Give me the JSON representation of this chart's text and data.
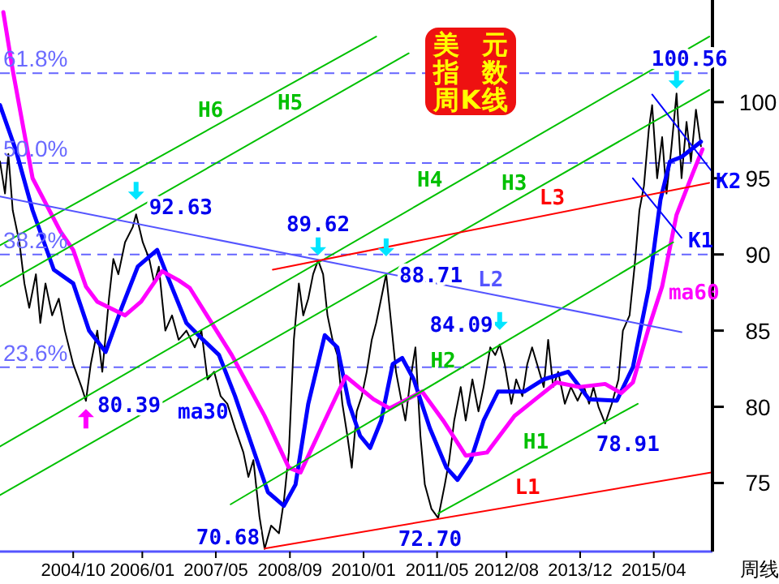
{
  "chart_data": {
    "type": "line",
    "title": "美元指数周K线",
    "xlim": [
      "2003-06-06",
      "2016-04-22"
    ],
    "ylim": [
      70.5,
      106.7
    ],
    "xticks": [
      {
        "value": "2004-10",
        "label": "2004/10"
      },
      {
        "value": "2006-01",
        "label": "2006/01"
      },
      {
        "value": "2007-05",
        "label": "2007/05"
      },
      {
        "value": "2008-09",
        "label": "2008/09"
      },
      {
        "value": "2010-01",
        "label": "2010/01"
      },
      {
        "value": "2011-05",
        "label": "2011/05"
      },
      {
        "value": "2012-08",
        "label": "2012/08"
      },
      {
        "value": "2013-12",
        "label": "2013/12"
      },
      {
        "value": "2015-04",
        "label": "2015/04"
      }
    ],
    "yticks": [
      75,
      80,
      85,
      90,
      95,
      100
    ],
    "ref_lines": [
      {
        "axis": "y",
        "value": 101.9,
        "color": "#6666ff",
        "line_style": "dashed"
      },
      {
        "axis": "y",
        "value": 96.0,
        "color": "#6666ff",
        "line_style": "dashed"
      },
      {
        "axis": "y",
        "value": 90.0,
        "color": "#6666ff",
        "line_style": "dashed"
      },
      {
        "axis": "y",
        "value": 82.6,
        "color": "#6666ff",
        "line_style": "dashed"
      }
    ],
    "annotations": [
      {
        "text": "92.63",
        "x": "2005-11-21",
        "y": 92.63
      },
      {
        "text": "80.39",
        "x": "2004-12-24",
        "y": 80.39
      },
      {
        "text": "89.62",
        "x": "2009-03-07",
        "y": 89.62
      },
      {
        "text": "88.71",
        "x": "2010-05-30",
        "y": 88.71
      },
      {
        "text": "70.68",
        "x": "2008-03-18",
        "y": 70.68
      },
      {
        "text": "84.09",
        "x": "2012-06-17",
        "y": 84.09
      },
      {
        "text": "72.70",
        "x": "2011-05-08",
        "y": 72.7
      },
      {
        "text": "78.91",
        "x": "2014-05-15",
        "y": 78.91
      },
      {
        "text": "100.56",
        "x": "2015-08-29",
        "y": 100.56
      },
      {
        "text": "61.8%",
        "x": "2003-06-06",
        "y": 101.9
      },
      {
        "text": "50.0%",
        "x": "2003-06-06",
        "y": 96.0
      },
      {
        "text": "38.2%",
        "x": "2003-06-06",
        "y": 90.0
      },
      {
        "text": "23.6%",
        "x": "2003-06-06",
        "y": 82.6
      },
      "周线"
    ],
    "series": [
      {
        "color": "#000000",
        "x": [
          "2003-06-06",
          "2003-07-09",
          "2003-07-31",
          "2003-08-29",
          "2003-10-12",
          "2003-11-14",
          "2003-12-16",
          "2004-01-29",
          "2004-02-27",
          "2004-04-01",
          "2004-05-15",
          "2004-06-28",
          "2004-08-07",
          "2004-10-01",
          "2004-11-25",
          "2004-12-24",
          "2005-01-26",
          "2005-03-10",
          "2005-04-12",
          "2005-05-26",
          "2005-06-24",
          "2005-07-27",
          "2005-09-09",
          "2005-10-30",
          "2005-11-21",
          "2006-01-04",
          "2006-02-16",
          "2006-03-21",
          "2006-04-20",
          "2006-05-11",
          "2006-06-02",
          "2006-07-16",
          "2006-08-29",
          "2006-10-19",
          "2006-12-13",
          "2007-01-26",
          "2007-03-07",
          "2007-04-20",
          "2007-06-02",
          "2007-07-16",
          "2007-09-05",
          "2007-10-30",
          "2007-12-02",
          "2008-01-04",
          "2008-02-13",
          "2008-03-18",
          "2008-04-30",
          "2008-06-21",
          "2008-07-23",
          "2008-08-25",
          "2008-09-27",
          "2008-10-30",
          "2008-11-28",
          "2009-01-01",
          "2009-02-02",
          "2009-03-07",
          "2009-04-09",
          "2009-05-08",
          "2009-06-10",
          "2009-07-12",
          "2009-08-14",
          "2009-09-16",
          "2009-10-15",
          "2009-11-17",
          "2009-12-20",
          "2010-01-22",
          "2010-02-24",
          "2010-03-25",
          "2010-04-27",
          "2010-05-30",
          "2010-07-02",
          "2010-08-03",
          "2010-09-02",
          "2010-10-04",
          "2010-11-06",
          "2010-12-09",
          "2011-01-11",
          "2011-02-09",
          "2011-03-25",
          "2011-05-08",
          "2011-06-21",
          "2011-07-20",
          "2011-08-22",
          "2011-10-04",
          "2011-11-06",
          "2011-12-20",
          "2012-01-29",
          "2012-03-03",
          "2012-04-16",
          "2012-05-19",
          "2012-06-17",
          "2012-07-20",
          "2012-09-02",
          "2012-10-04",
          "2012-11-14",
          "2012-12-16",
          "2013-01-18",
          "2013-02-20",
          "2013-04-05",
          "2013-05-04",
          "2013-06-06",
          "2013-07-09",
          "2013-08-22",
          "2013-10-01",
          "2013-11-14",
          "2013-12-27",
          "2014-01-29",
          "2014-02-27",
          "2014-04-01",
          "2014-05-15",
          "2014-06-28",
          "2014-08-11",
          "2014-09-09",
          "2014-10-23",
          "2014-11-25",
          "2014-12-27",
          "2015-01-26",
          "2015-02-27",
          "2015-03-21",
          "2015-04-23",
          "2015-05-26",
          "2015-06-24",
          "2015-07-27",
          "2015-08-29",
          "2015-10-01",
          "2015-11-03",
          "2015-12-02",
          "2016-01-04",
          "2016-02-06"
        ],
        "values": [
          96.1,
          94.0,
          96.6,
          92.9,
          90.8,
          88.1,
          86.5,
          88.7,
          85.5,
          88.1,
          86.0,
          87.1,
          85.0,
          82.8,
          81.3,
          80.39,
          82.8,
          85.0,
          82.3,
          87.1,
          89.7,
          88.7,
          90.8,
          91.8,
          92.63,
          90.8,
          89.7,
          88.1,
          89.2,
          87.1,
          85.0,
          86.0,
          84.4,
          85.0,
          83.9,
          85.0,
          81.8,
          82.3,
          80.7,
          80.2,
          78.6,
          77.0,
          75.4,
          76.5,
          72.8,
          70.68,
          72.2,
          71.7,
          73.8,
          77.0,
          84.4,
          88.1,
          86.0,
          87.1,
          88.7,
          89.62,
          88.7,
          86.0,
          84.4,
          83.4,
          80.2,
          78.1,
          76.0,
          79.7,
          80.7,
          82.3,
          84.4,
          85.5,
          87.1,
          88.71,
          85.5,
          82.3,
          80.7,
          79.1,
          81.8,
          83.9,
          78.1,
          74.9,
          73.3,
          72.7,
          74.9,
          76.5,
          79.1,
          81.3,
          79.1,
          81.8,
          79.7,
          81.3,
          83.9,
          83.4,
          84.09,
          82.8,
          80.2,
          81.8,
          80.7,
          82.8,
          83.9,
          82.8,
          81.3,
          84.4,
          81.3,
          82.3,
          80.2,
          81.3,
          80.4,
          81.3,
          80.2,
          81.3,
          80.0,
          78.91,
          80.2,
          81.8,
          85.0,
          86.0,
          89.2,
          92.9,
          94.5,
          98.2,
          99.8,
          95.0,
          97.7,
          94.0,
          97.1,
          100.56,
          95.0,
          98.7,
          96.1,
          99.5,
          97.1
        ]
      },
      {
        "name": "ma30",
        "color": "#0000ff",
        "x": [
          "2003-06-06",
          "2003-09-20",
          "2004-01-07",
          "2004-05-26",
          "2004-10-01",
          "2005-01-15",
          "2005-05-04",
          "2005-08-18",
          "2005-12-02",
          "2006-04-09",
          "2006-07-05",
          "2006-10-19",
          "2007-02-06",
          "2007-05-22",
          "2007-09-05",
          "2007-12-24",
          "2008-04-09",
          "2008-07-23",
          "2008-10-08",
          "2009-01-01",
          "2009-04-20",
          "2009-07-12",
          "2009-09-27",
          "2009-12-09",
          "2010-02-13",
          "2010-04-27",
          "2010-07-12",
          "2010-09-13",
          "2010-11-28",
          "2011-03-14",
          "2011-07-02",
          "2011-09-13",
          "2011-12-09",
          "2012-03-03",
          "2012-06-06",
          "2012-11-25",
          "2013-04-05",
          "2013-09-13",
          "2014-01-29",
          "2014-07-31",
          "2014-11-14",
          "2015-02-27",
          "2015-05-15",
          "2015-07-16",
          "2015-10-01",
          "2016-02-06"
        ],
        "values": [
          99.8,
          96.8,
          92.9,
          89.0,
          88.1,
          85.0,
          83.6,
          86.5,
          89.2,
          90.3,
          88.1,
          85.5,
          84.4,
          83.4,
          80.7,
          77.5,
          74.4,
          73.5,
          74.9,
          80.2,
          84.7,
          83.9,
          80.2,
          78.1,
          77.3,
          79.1,
          82.8,
          83.2,
          81.8,
          78.6,
          76.0,
          75.2,
          76.5,
          79.1,
          81.0,
          81.0,
          81.8,
          82.3,
          80.5,
          80.4,
          82.6,
          87.8,
          93.6,
          96.1,
          96.4,
          97.4
        ]
      },
      {
        "name": "ma60",
        "color": "#ff00ff",
        "x": [
          "2003-06-28",
          "2003-08-29",
          "2004-01-07",
          "2004-07-09",
          "2004-10-01",
          "2004-12-24",
          "2005-03-10",
          "2005-09-09",
          "2005-12-24",
          "2006-05-11",
          "2006-08-29",
          "2006-11-10",
          "2007-08-14",
          "2008-03-18",
          "2008-08-25",
          "2008-11-10",
          "2009-04-20",
          "2009-09-05",
          "2010-03-07",
          "2010-06-21",
          "2011-01-22",
          "2011-06-10",
          "2011-11-06",
          "2012-03-25",
          "2012-09-23",
          "2013-02-09",
          "2013-06-28",
          "2013-11-25",
          "2014-05-15",
          "2014-08-29",
          "2014-11-14",
          "2015-02-27",
          "2015-05-26",
          "2015-08-29",
          "2015-12-13",
          "2016-02-16"
        ],
        "values": [
          105.9,
          102.1,
          95.0,
          91.5,
          90.3,
          87.9,
          86.9,
          86.0,
          86.9,
          88.9,
          88.3,
          87.8,
          83.4,
          79.4,
          76.0,
          75.7,
          79.1,
          82.0,
          80.5,
          79.9,
          81.0,
          79.1,
          76.8,
          77.0,
          79.4,
          80.5,
          81.6,
          81.3,
          81.5,
          80.9,
          81.6,
          85.2,
          87.9,
          92.6,
          95.3,
          96.9
        ]
      },
      {
        "name": "H1",
        "color": "#00c000",
        "x": [
          "2011-05-08",
          "2014-12-16"
        ],
        "values": [
          73.0,
          80.2
        ]
      },
      {
        "name": "H2",
        "color": "#00c000",
        "x": [
          "2007-08-07",
          "2015-08-07"
        ],
        "values": [
          73.6,
          90.8
        ]
      },
      {
        "name": "H3",
        "color": "#00c000",
        "x": [
          "2003-06-06",
          "2016-04-01"
        ],
        "values": [
          74.2,
          100.8
        ]
      },
      {
        "name": "H4",
        "color": "#00c000",
        "x": [
          "2003-06-06",
          "2016-04-01"
        ],
        "values": [
          77.4,
          104.3
        ]
      },
      {
        "name": "H5",
        "color": "#00c000",
        "x": [
          "2003-06-06",
          "2010-10-26"
        ],
        "values": [
          87.9,
          103.2
        ]
      },
      {
        "name": "H6",
        "color": "#00c000",
        "x": [
          "2003-06-06",
          "2010-03-25"
        ],
        "values": [
          90.6,
          104.3
        ]
      },
      {
        "name": "L1",
        "color": "#ff0000",
        "x": [
          "2008-03-18",
          "2016-04-22"
        ],
        "values": [
          70.7,
          75.7
        ]
      },
      {
        "name": "L2",
        "color": "#5555ff",
        "x": [
          "2003-06-06",
          "2015-10-01"
        ],
        "values": [
          93.8,
          84.9
        ]
      },
      {
        "name": "L3",
        "color": "#ff0000",
        "x": [
          "2008-05-11",
          "2016-04-01"
        ],
        "values": [
          89.0,
          94.7
        ]
      },
      {
        "name": "K1",
        "color": "#0000ff",
        "x": [
          "2014-11-14",
          "2015-10-01"
        ],
        "values": [
          95.0,
          91.1
        ]
      },
      {
        "name": "K2",
        "color": "#0000ff",
        "x": [
          "2015-03-21",
          "2016-04-22"
        ],
        "values": [
          100.5,
          95.4
        ]
      }
    ]
  }
}
